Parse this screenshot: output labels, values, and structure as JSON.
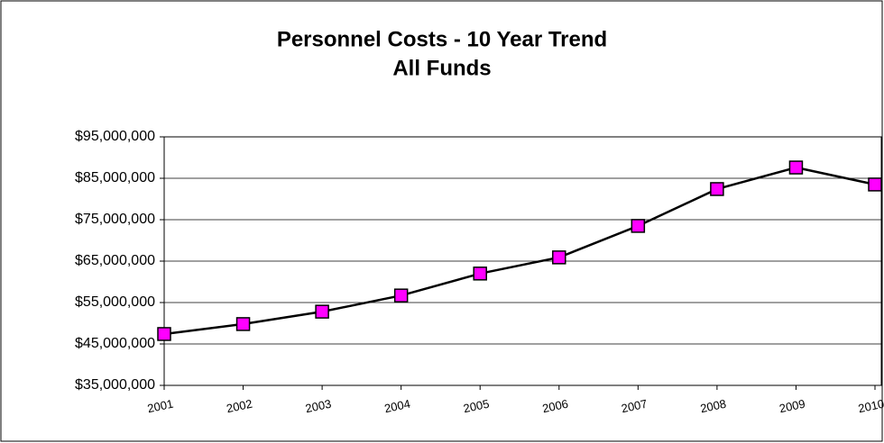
{
  "chart_data": {
    "type": "line",
    "title": "Personnel Costs - 10 Year Trend",
    "subtitle": "All Funds",
    "categories": [
      "2001",
      "2002",
      "2003",
      "2004",
      "2005",
      "2006",
      "2007",
      "2008",
      "2009",
      "2010"
    ],
    "series": [
      {
        "name": "Personnel Costs",
        "color": "#ff00ff",
        "values": [
          47400000,
          49800000,
          52800000,
          56700000,
          62000000,
          65900000,
          73500000,
          82400000,
          87600000,
          83500000
        ]
      }
    ],
    "ylim": [
      35000000,
      95000000
    ],
    "yticks": [
      {
        "value": 35000000,
        "label": "$35,000,000"
      },
      {
        "value": 45000000,
        "label": "$45,000,000"
      },
      {
        "value": 55000000,
        "label": "$55,000,000"
      },
      {
        "value": 65000000,
        "label": "$65,000,000"
      },
      {
        "value": 75000000,
        "label": "$75,000,000"
      },
      {
        "value": 85000000,
        "label": "$85,000,000"
      },
      {
        "value": 95000000,
        "label": "$95,000,000"
      }
    ],
    "grid": true
  }
}
